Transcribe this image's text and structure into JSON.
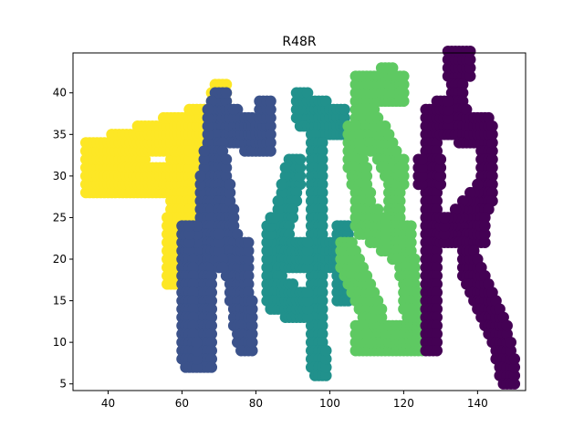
{
  "chart_data": {
    "type": "scatter",
    "title": "R48R",
    "xlabel": "",
    "ylabel": "",
    "xlim": [
      30.5,
      153.0
    ],
    "ylim": [
      4.2,
      44.8
    ],
    "xticks": [
      40,
      60,
      80,
      100,
      120,
      140
    ],
    "yticks": [
      5,
      10,
      15,
      20,
      25,
      30,
      35,
      40
    ],
    "grid": false,
    "legend": "none",
    "series": [
      {
        "color": "#fde725",
        "description_strokes": [
          {
            "from": [
              35,
              32
            ],
            "to": [
              70,
              37
            ]
          },
          {
            "from": [
              35,
              29
            ],
            "to": [
              58,
              30
            ]
          },
          {
            "from": [
              60,
              35
            ],
            "to": [
              57,
              18
            ]
          },
          {
            "from": [
              65,
              33
            ],
            "to": [
              60,
              24
            ]
          },
          {
            "from": [
              70,
              39
            ],
            "to": [
              68,
              30
            ]
          }
        ],
        "thickness": 3
      },
      {
        "color": "#3b528b",
        "description_strokes": [
          {
            "from": [
              70,
              37
            ],
            "to": [
              81,
              34
            ]
          },
          {
            "from": [
              70,
              38
            ],
            "to": [
              66,
              26
            ]
          },
          {
            "from": [
              66,
              26
            ],
            "to": [
              66,
              8
            ]
          },
          {
            "from": [
              68,
              36
            ],
            "to": [
              77,
              10
            ]
          },
          {
            "from": [
              64,
              22
            ],
            "to": [
              76,
              20
            ]
          },
          {
            "from": [
              76,
              20
            ],
            "to": [
              77,
              13
            ]
          },
          {
            "from": [
              61,
              22
            ],
            "to": [
              62,
              8
            ]
          },
          {
            "from": [
              82,
              37
            ],
            "to": [
              82,
              34
            ]
          }
        ],
        "thickness": 3
      },
      {
        "color": "#21918c",
        "description_strokes": [
          {
            "from": [
              92,
              38
            ],
            "to": [
              102,
              36
            ]
          },
          {
            "from": [
              90,
              30
            ],
            "to": [
              84,
              16
            ]
          },
          {
            "from": [
              96,
              37
            ],
            "to": [
              97,
              7
            ]
          },
          {
            "from": [
              84,
              20
            ],
            "to": [
              103,
              20
            ]
          },
          {
            "from": [
              84,
              16
            ],
            "to": [
              92,
              14
            ]
          },
          {
            "from": [
              84,
              17
            ],
            "to": [
              85,
              23
            ]
          },
          {
            "from": [
              103,
              22
            ],
            "to": [
              103,
              16
            ]
          }
        ],
        "thickness": 3
      },
      {
        "color": "#5ec962",
        "description_strokes": [
          {
            "from": [
              108,
              40
            ],
            "to": [
              118,
              40
            ]
          },
          {
            "from": [
              108,
              38
            ],
            "to": [
              118,
              30
            ]
          },
          {
            "from": [
              106,
              34
            ],
            "to": [
              110,
              24
            ]
          },
          {
            "from": [
              118,
              30
            ],
            "to": [
              117,
              22
            ]
          },
          {
            "from": [
              108,
              25
            ],
            "to": [
              120,
              21
            ]
          },
          {
            "from": [
              104,
              20
            ],
            "to": [
              112,
              12
            ]
          },
          {
            "from": [
              108,
              10
            ],
            "to": [
              122,
              10
            ]
          },
          {
            "from": [
              120,
              22
            ],
            "to": [
              123,
              10
            ]
          },
          {
            "from": [
              115,
              41
            ],
            "to": [
              115,
              41
            ]
          }
        ],
        "thickness": 3
      },
      {
        "color": "#440154",
        "description_strokes": [
          {
            "from": [
              133,
              43
            ],
            "to": [
              136,
              43
            ]
          },
          {
            "from": [
              134,
              43
            ],
            "to": [
              134,
              37
            ]
          },
          {
            "from": [
              127,
              36
            ],
            "to": [
              127,
              10
            ]
          },
          {
            "from": [
              130,
              37
            ],
            "to": [
              141,
              35
            ]
          },
          {
            "from": [
              142,
              34
            ],
            "to": [
              142,
              28
            ]
          },
          {
            "from": [
              142,
              28
            ],
            "to": [
              133,
              23
            ]
          },
          {
            "from": [
              127,
              24
            ],
            "to": [
              140,
              23
            ]
          },
          {
            "from": [
              137,
              20
            ],
            "to": [
              146,
              10
            ]
          },
          {
            "from": [
              146,
              10
            ],
            "to": [
              148,
              6
            ]
          },
          {
            "from": [
              125,
              30
            ],
            "to": [
              128,
              30
            ]
          }
        ],
        "thickness": 3
      }
    ]
  }
}
